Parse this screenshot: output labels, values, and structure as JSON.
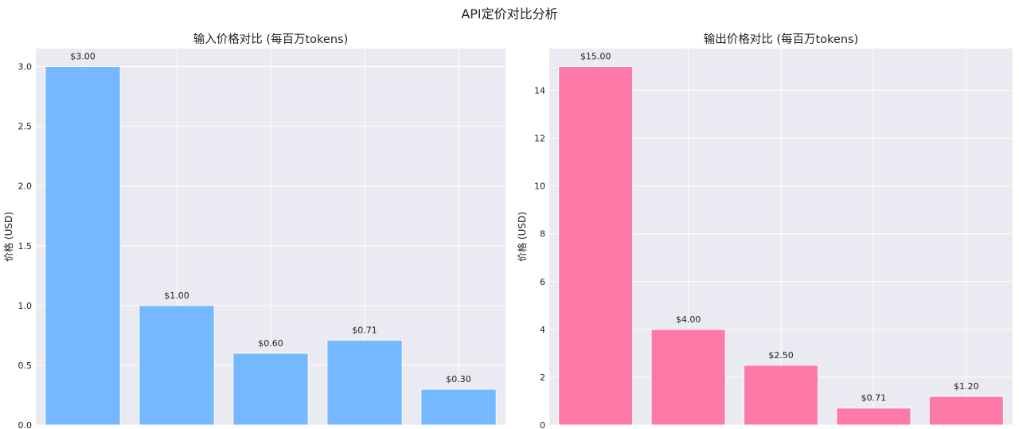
{
  "figure": {
    "suptitle": "API定价对比分析"
  },
  "chart_data": [
    {
      "type": "bar",
      "title": "输入价格对比 (每百万tokens)",
      "xlabel": "",
      "ylabel": "价格 (USD)",
      "categories": [
        "",
        "",
        "",
        "",
        ""
      ],
      "values": [
        3.0,
        1.0,
        0.6,
        0.71,
        0.3
      ],
      "value_labels": [
        "$3.00",
        "$1.00",
        "$0.60",
        "$0.71",
        "$0.30"
      ],
      "ylim": [
        0,
        3.15
      ],
      "yticks": [
        0.0,
        0.5,
        1.0,
        1.5,
        2.0,
        2.5,
        3.0
      ],
      "ytick_labels": [
        "0.0",
        "0.5",
        "1.0",
        "1.5",
        "2.0",
        "2.5",
        "3.0"
      ],
      "grid": true,
      "bar_color": "#74b9ff",
      "background": "#eaeaf2"
    },
    {
      "type": "bar",
      "title": "输出价格对比 (每百万tokens)",
      "xlabel": "",
      "ylabel": "价格 (USD)",
      "categories": [
        "",
        "",
        "",
        "",
        ""
      ],
      "values": [
        15.0,
        4.0,
        2.5,
        0.71,
        1.2
      ],
      "value_labels": [
        "$15.00",
        "$4.00",
        "$2.50",
        "$0.71",
        "$1.20"
      ],
      "ylim": [
        0,
        15.75
      ],
      "yticks": [
        0,
        2,
        4,
        6,
        8,
        10,
        12,
        14
      ],
      "ytick_labels": [
        "0",
        "2",
        "4",
        "6",
        "8",
        "10",
        "12",
        "14"
      ],
      "grid": true,
      "bar_color": "#fd79a8",
      "background": "#eaeaf2"
    }
  ]
}
